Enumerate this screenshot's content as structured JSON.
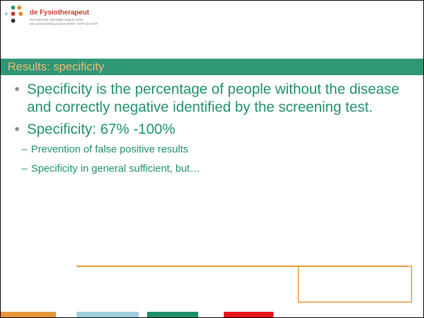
{
  "header": {
    "logo_name": "de Fysiotherapeut",
    "logo_lines": [
      "Het Nationale Sleeswijk Congres 2016",
      "een samenwerking tussen NVMT, NVFG & NVOF"
    ]
  },
  "title": "Results: specificity",
  "bullets": [
    {
      "text": "Specificity is the percentage of people without the disease  and correctly negative identified by the screening test.",
      "sub": []
    },
    {
      "text": "Specificity: 67% -100%",
      "sub": [
        "Prevention of false positive results",
        "Specificity in general sufficient, but…"
      ]
    }
  ]
}
